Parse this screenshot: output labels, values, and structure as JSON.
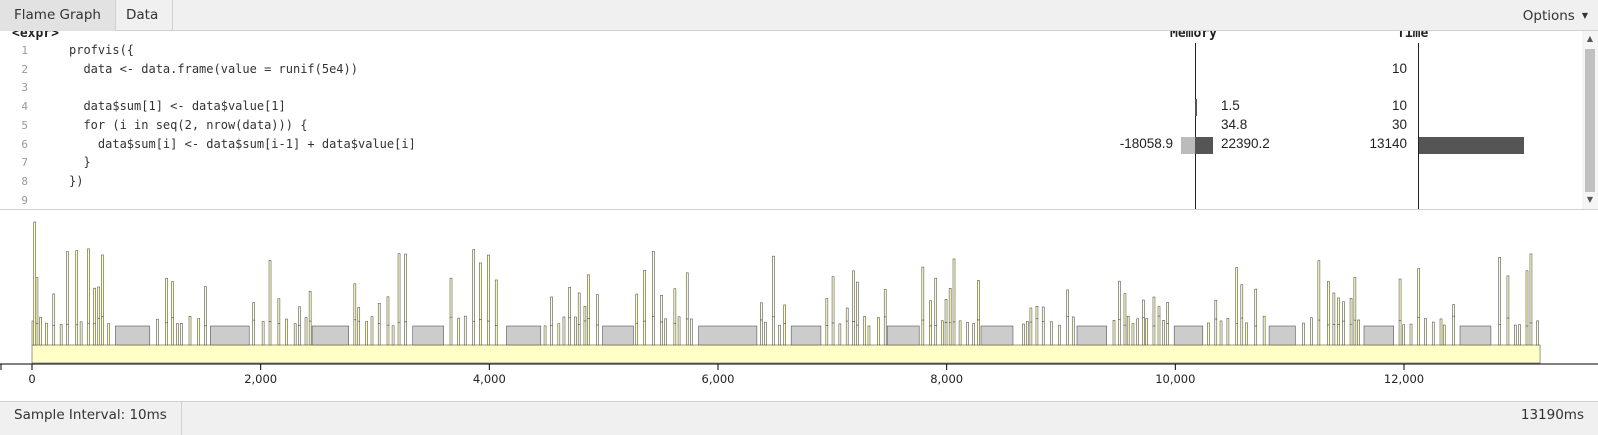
{
  "tabs": [
    {
      "label": "Flame Graph",
      "active": true
    },
    {
      "label": "Data",
      "active": false
    }
  ],
  "options_label": "Options",
  "code_panel": {
    "file_label": "<expr>",
    "memory_header": "Memory",
    "time_header": "Time",
    "lines": [
      {
        "num": "1",
        "code": "profvis({",
        "mem_neg": "",
        "mem": "",
        "time": ""
      },
      {
        "num": "2",
        "code": "  data <- data.frame(value = runif(5e4))",
        "mem_neg": "",
        "mem": "",
        "time": "10"
      },
      {
        "num": "3",
        "code": "",
        "mem_neg": "",
        "mem": "",
        "time": ""
      },
      {
        "num": "4",
        "code": "  data$sum[1] <- data$value[1]",
        "mem_neg": "",
        "mem": "1.5",
        "time": "10"
      },
      {
        "num": "5",
        "code": "  for (i in seq(2, nrow(data))) {",
        "mem_neg": "",
        "mem": "34.8",
        "time": "30"
      },
      {
        "num": "6",
        "code": "    data$sum[i] <- data$sum[i-1] + data$value[i]",
        "mem_neg": "-18058.9",
        "mem": "22390.2",
        "time": "13140"
      },
      {
        "num": "7",
        "code": "  }",
        "mem_neg": "",
        "mem": "",
        "time": ""
      },
      {
        "num": "8",
        "code": "})",
        "mem_neg": "",
        "mem": "",
        "time": ""
      },
      {
        "num": "9",
        "code": "",
        "mem_neg": "",
        "mem": "",
        "time": ""
      }
    ],
    "bars": {
      "memory_negative": -18058.9,
      "memory_positive": 22390.2,
      "time_ms": 13140
    }
  },
  "flame_graph": {
    "x_ticks": [
      "0",
      "2,000",
      "4,000",
      "6,000",
      "8,000",
      "10,000",
      "12,000"
    ],
    "x_max_ms": 13190,
    "gc_blocks_ms": [
      [
        730,
        1030
      ],
      [
        1560,
        1900
      ],
      [
        2450,
        2770
      ],
      [
        3330,
        3600
      ],
      [
        4150,
        4450
      ],
      [
        4990,
        5260
      ],
      [
        5830,
        6340
      ],
      [
        6640,
        6900
      ],
      [
        7480,
        7760
      ],
      [
        8300,
        8580
      ],
      [
        9140,
        9400
      ],
      [
        9990,
        10240
      ],
      [
        10820,
        11050
      ],
      [
        11650,
        11910
      ],
      [
        12490,
        12760
      ]
    ],
    "colors": {
      "base": "#ffffc6",
      "gc": "#cccccc",
      "stroke": "#555555"
    }
  },
  "footer": {
    "sample_interval": "Sample Interval: 10ms",
    "total_time": "13190ms"
  }
}
